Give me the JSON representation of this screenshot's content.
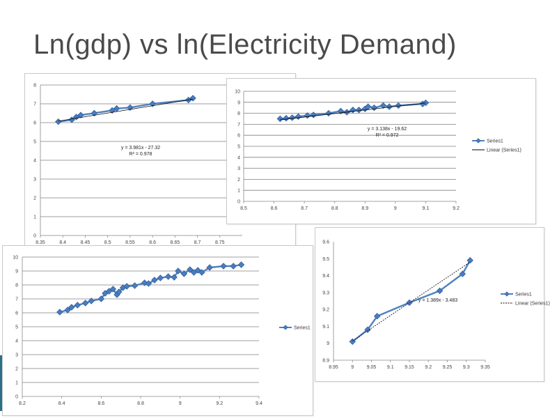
{
  "slide": {
    "title": "Ln(gdp) vs ln(Electricity Demand)"
  },
  "colors": {
    "series": "#4f81bd",
    "marker": "#4a7cc0",
    "marker_stroke": "#2e5c96",
    "trend": "#000000",
    "grid": "#7f7f7f"
  },
  "chart_data": [
    {
      "type": "line",
      "xlim": [
        8.35,
        8.8
      ],
      "ylim": [
        0,
        8
      ],
      "x_ticks": [
        "8.35",
        "8.4",
        "8.45",
        "8.5",
        "8.55",
        "8.6",
        "8.65",
        "8.7",
        "8.75"
      ],
      "y_ticks": [
        "0",
        "1",
        "2",
        "3",
        "4",
        "5",
        "6",
        "7",
        "8"
      ],
      "grid": true,
      "legend": "",
      "series": [
        {
          "x": [
            8.39,
            8.42,
            8.43,
            8.44,
            8.47,
            8.51,
            8.52,
            8.55,
            8.6,
            8.68,
            8.69
          ],
          "y": [
            6.05,
            6.15,
            6.3,
            6.4,
            6.5,
            6.65,
            6.75,
            6.8,
            7.0,
            7.2,
            7.3
          ]
        }
      ],
      "trendline": {
        "x": [
          8.39,
          8.69
        ],
        "y": [
          6.08,
          7.25
        ]
      },
      "equation": "y = 3.981x - 27.32",
      "r2": "R² = 0.978"
    },
    {
      "type": "line",
      "xlim": [
        8.5,
        9.2
      ],
      "ylim": [
        0,
        10
      ],
      "x_ticks": [
        "8.5",
        "8.6",
        "8.7",
        "8.8",
        "8.9",
        "9",
        "9.1",
        "9.2"
      ],
      "y_ticks": [
        "0",
        "1",
        "2",
        "3",
        "4",
        "5",
        "6",
        "7",
        "8",
        "9",
        "10"
      ],
      "grid": true,
      "legend": "right",
      "series": [
        {
          "name": "Series1",
          "x": [
            8.62,
            8.64,
            8.66,
            8.68,
            8.71,
            8.73,
            8.78,
            8.82,
            8.84,
            8.86,
            8.88,
            8.9,
            8.91,
            8.93,
            8.96,
            8.98,
            9.01,
            9.09,
            9.1
          ],
          "y": [
            7.5,
            7.55,
            7.6,
            7.7,
            7.8,
            7.85,
            8.0,
            8.2,
            8.1,
            8.3,
            8.3,
            8.4,
            8.6,
            8.5,
            8.7,
            8.6,
            8.7,
            8.85,
            8.95
          ]
        }
      ],
      "trendline_name": "Linear (Series1)",
      "trendline": {
        "x": [
          8.62,
          9.1
        ],
        "y": [
          7.4,
          8.94
        ]
      },
      "equation": "y = 3.138x - 19.62",
      "r2": "R² = 0.972"
    },
    {
      "type": "line",
      "xlim": [
        8.2,
        9.4
      ],
      "ylim": [
        0,
        10
      ],
      "x_ticks": [
        "8.2",
        "8.4",
        "8.6",
        "8.8",
        "9",
        "9.2",
        "9.4"
      ],
      "y_ticks": [
        "0",
        "1",
        "2",
        "3",
        "4",
        "5",
        "6",
        "7",
        "8",
        "9",
        "10"
      ],
      "grid": true,
      "legend": "right",
      "series": [
        {
          "name": "Series1",
          "x": [
            8.39,
            8.43,
            8.45,
            8.48,
            8.52,
            8.55,
            8.6,
            8.62,
            8.64,
            8.66,
            8.68,
            8.69,
            8.71,
            8.73,
            8.77,
            8.82,
            8.84,
            8.87,
            8.9,
            8.94,
            8.97,
            8.99,
            9.02,
            9.05,
            9.07,
            9.09,
            9.11,
            9.15,
            9.22,
            9.27,
            9.31
          ],
          "y": [
            6.05,
            6.2,
            6.4,
            6.55,
            6.7,
            6.85,
            7.0,
            7.4,
            7.55,
            7.7,
            7.3,
            7.5,
            7.8,
            7.9,
            7.95,
            8.15,
            8.1,
            8.35,
            8.5,
            8.6,
            8.55,
            9.0,
            8.8,
            9.1,
            8.9,
            9.05,
            8.9,
            9.25,
            9.35,
            9.35,
            9.45
          ]
        }
      ]
    },
    {
      "type": "line",
      "xlim": [
        8.95,
        9.35
      ],
      "ylim": [
        8.9,
        9.6
      ],
      "x_ticks": [
        "8.95",
        "9",
        "9.05",
        "9.1",
        "9.15",
        "9.2",
        "9.25",
        "9.3",
        "9.35"
      ],
      "y_ticks": [
        "8.9",
        "9",
        "9.1",
        "9.2",
        "9.3",
        "9.4",
        "9.5",
        "9.6"
      ],
      "grid": false,
      "legend": "right",
      "series": [
        {
          "name": "Series1",
          "x": [
            9.0,
            9.04,
            9.065,
            9.15,
            9.23,
            9.29,
            9.31
          ],
          "y": [
            9.01,
            9.08,
            9.16,
            9.24,
            9.31,
            9.41,
            9.49
          ]
        }
      ],
      "trendline_name": "Linear (Series1)",
      "trendline": {
        "x": [
          9.0,
          9.31
        ],
        "y": [
          9.014,
          9.48
        ]
      },
      "equation": "y = 1.389x - 3.483"
    }
  ]
}
